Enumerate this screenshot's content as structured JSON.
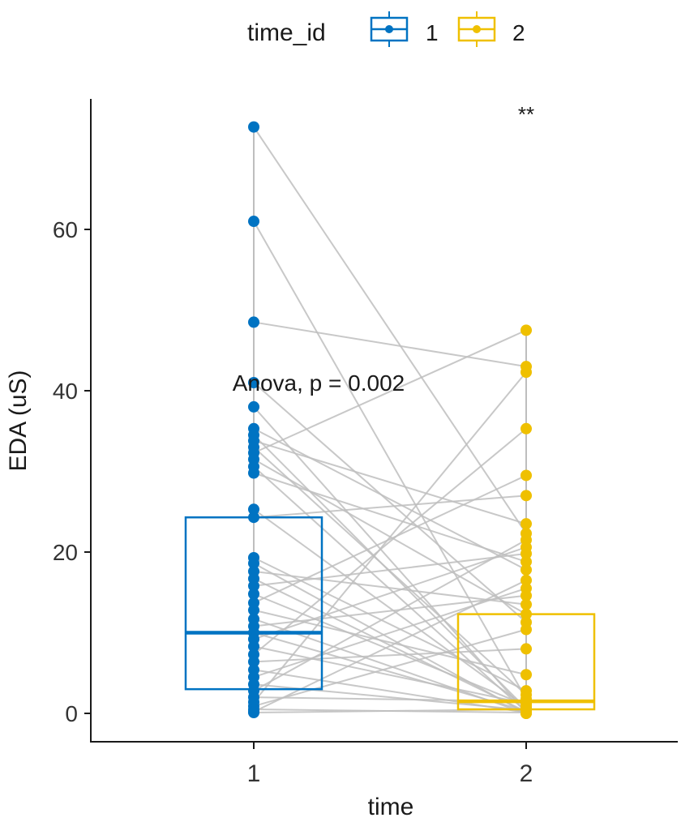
{
  "chart_data": {
    "type": "box",
    "subtype": "paired boxplot with jittered points and connecting lines",
    "title": "",
    "xlabel": "time",
    "ylabel": "EDA (uS)",
    "x_ticks": [
      "1",
      "2"
    ],
    "y_ticks": [
      0,
      20,
      40,
      60
    ],
    "ylim": [
      -2,
      76
    ],
    "grid": false,
    "legend": {
      "title": "time_id",
      "position": "top",
      "entries": [
        {
          "label": "1",
          "color": "#0073C2"
        },
        {
          "label": "2",
          "color": "#EFC000"
        }
      ]
    },
    "annotations": [
      {
        "text": "Anova, p = 0.002",
        "x": 1.5,
        "y": 41
      },
      {
        "text": "**",
        "x": 2,
        "y": 74
      }
    ],
    "connector_color": "#BEBEBE",
    "series": [
      {
        "name": "1",
        "color": "#0073C2",
        "box": {
          "q1": 3.0,
          "median": 10.0,
          "q3": 24.3,
          "whisker_low": 0.1,
          "whisker_high": 48.5
        },
        "values": [
          72.7,
          61.0,
          48.5,
          41.0,
          38.0,
          35.3,
          34.5,
          33.8,
          33.0,
          32.3,
          31.5,
          30.6,
          29.8,
          25.3,
          24.3,
          19.3,
          18.6,
          17.6,
          16.7,
          15.8,
          14.8,
          13.7,
          12.8,
          11.7,
          10.8,
          10.0,
          9.2,
          8.3,
          7.3,
          6.4,
          5.4,
          4.5,
          3.6,
          2.8,
          2.0,
          1.4,
          0.9,
          0.5,
          0.2,
          0.1
        ]
      },
      {
        "name": "2",
        "color": "#EFC000",
        "box": {
          "q1": 0.5,
          "median": 1.5,
          "q3": 12.3,
          "whisker_low": 0.0,
          "whisker_high": 29.5
        },
        "values": [
          47.5,
          43.0,
          42.3,
          35.3,
          29.5,
          27.0,
          23.5,
          22.3,
          21.5,
          20.6,
          19.8,
          18.8,
          17.8,
          16.5,
          15.5,
          14.6,
          13.5,
          12.3,
          11.3,
          10.4,
          8.0,
          4.8,
          2.8,
          2.3,
          1.8,
          1.5,
          1.2,
          1.0,
          0.8,
          0.6,
          0.5,
          0.4,
          0.3,
          0.2,
          0.2,
          0.1,
          0.1,
          0.1,
          0.0,
          0.0
        ]
      }
    ]
  }
}
